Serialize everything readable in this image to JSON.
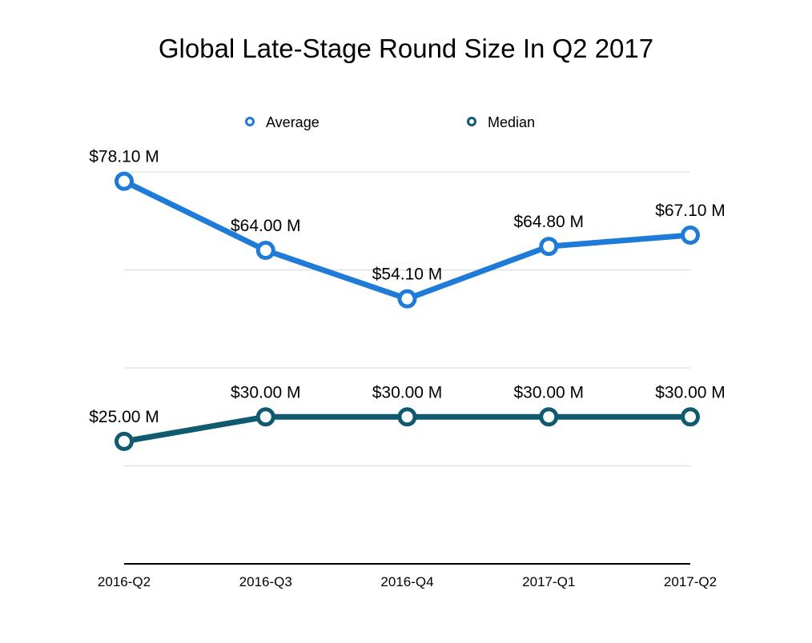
{
  "chart_data": {
    "type": "line",
    "title": "Global Late-Stage Round Size In Q2 2017",
    "xlabel": "",
    "ylabel": "",
    "categories": [
      "2016-Q2",
      "2016-Q3",
      "2016-Q4",
      "2017-Q1",
      "2017-Q2"
    ],
    "ylim": [
      0,
      80
    ],
    "yticks": [
      0,
      20,
      40,
      60,
      80
    ],
    "grid": true,
    "legend_position": "top",
    "series": [
      {
        "name": "Average",
        "color": "#1f7bd8",
        "values": [
          78.1,
          64.0,
          54.1,
          64.8,
          67.1
        ],
        "labels": [
          "$78.10 M",
          "$64.00 M",
          "$54.10 M",
          "$64.80 M",
          "$67.10 M"
        ]
      },
      {
        "name": "Median",
        "color": "#0f5a6f",
        "values": [
          25.0,
          30.0,
          30.0,
          30.0,
          30.0
        ],
        "labels": [
          "$25.00 M",
          "$30.00 M",
          "$30.00 M",
          "$30.00 M",
          "$30.00 M"
        ]
      }
    ]
  }
}
